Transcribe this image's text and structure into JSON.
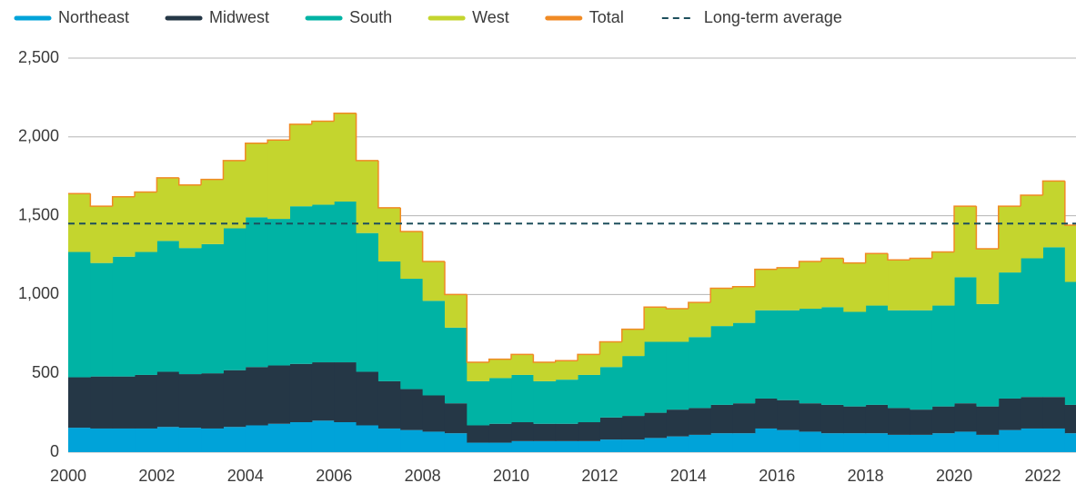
{
  "chart_data": {
    "type": "stacked_step_area",
    "x": [
      2000,
      2000.5,
      2001,
      2001.5,
      2002,
      2002.5,
      2003,
      2003.5,
      2004,
      2004.5,
      2005,
      2005.5,
      2006,
      2006.5,
      2007,
      2007.5,
      2008,
      2008.5,
      2009,
      2009.5,
      2010,
      2010.5,
      2011,
      2011.5,
      2012,
      2012.5,
      2013,
      2013.5,
      2014,
      2014.5,
      2015,
      2015.5,
      2016,
      2016.5,
      2017,
      2017.5,
      2018,
      2018.5,
      2019,
      2019.5,
      2020,
      2020.5,
      2021,
      2021.5,
      2022,
      2022.5
    ],
    "series": [
      {
        "name": "Northeast",
        "color": "#00a3d9",
        "stacked": true,
        "values": [
          155,
          150,
          150,
          150,
          160,
          155,
          150,
          160,
          170,
          180,
          190,
          200,
          190,
          170,
          150,
          140,
          130,
          120,
          60,
          60,
          70,
          70,
          70,
          70,
          80,
          80,
          90,
          100,
          110,
          120,
          120,
          150,
          140,
          130,
          120,
          120,
          120,
          110,
          110,
          120,
          130,
          110,
          140,
          150,
          150,
          120
        ]
      },
      {
        "name": "Midwest",
        "color": "#253746",
        "stacked": true,
        "values": [
          320,
          330,
          330,
          340,
          350,
          340,
          350,
          360,
          370,
          370,
          370,
          370,
          380,
          340,
          300,
          260,
          230,
          190,
          110,
          120,
          120,
          110,
          110,
          120,
          140,
          150,
          160,
          170,
          170,
          180,
          190,
          190,
          190,
          180,
          180,
          170,
          180,
          170,
          160,
          170,
          180,
          180,
          200,
          200,
          200,
          180
        ]
      },
      {
        "name": "South",
        "color": "#00b3a4",
        "stacked": true,
        "values": [
          795,
          720,
          760,
          780,
          830,
          800,
          820,
          900,
          950,
          930,
          1000,
          1000,
          1020,
          880,
          760,
          700,
          600,
          480,
          280,
          290,
          300,
          270,
          280,
          300,
          320,
          380,
          450,
          430,
          450,
          500,
          510,
          560,
          570,
          600,
          620,
          600,
          630,
          620,
          630,
          640,
          800,
          650,
          800,
          880,
          950,
          780
        ]
      },
      {
        "name": "West",
        "color": "#c4d52e",
        "stacked": true,
        "values": [
          370,
          360,
          380,
          380,
          400,
          400,
          410,
          430,
          470,
          500,
          520,
          530,
          560,
          460,
          340,
          300,
          250,
          210,
          120,
          120,
          130,
          120,
          120,
          130,
          160,
          170,
          220,
          210,
          220,
          240,
          230,
          260,
          270,
          300,
          310,
          310,
          330,
          320,
          330,
          340,
          450,
          350,
          420,
          400,
          420,
          360
        ]
      },
      {
        "name": "Total",
        "color": "#f08a24",
        "stacked": false,
        "values": [
          1640,
          1560,
          1620,
          1650,
          1740,
          1695,
          1730,
          1850,
          1960,
          1980,
          2080,
          2100,
          2150,
          1850,
          1550,
          1400,
          1210,
          1000,
          570,
          590,
          620,
          570,
          580,
          620,
          700,
          780,
          920,
          910,
          950,
          1040,
          1050,
          1160,
          1170,
          1210,
          1230,
          1200,
          1260,
          1220,
          1230,
          1270,
          1560,
          1290,
          1560,
          1630,
          1720,
          1440
        ]
      }
    ],
    "reference_line": {
      "name": "Long-term average",
      "value": 1450,
      "color": "#1d4f5c",
      "dashed": true
    },
    "xlim": [
      2000,
      2022.75
    ],
    "xticks": [
      2000,
      2002,
      2004,
      2006,
      2008,
      2010,
      2012,
      2014,
      2016,
      2018,
      2020,
      2022
    ],
    "ylim": [
      0,
      2500
    ],
    "yticks": [
      0,
      500,
      {
        "value": 1000,
        "label": "1,000"
      },
      {
        "value": 1500,
        "label": "1,500"
      },
      {
        "value": 2000,
        "label": "2,000"
      },
      {
        "value": 2500,
        "label": "2,500"
      }
    ],
    "grid": true
  }
}
